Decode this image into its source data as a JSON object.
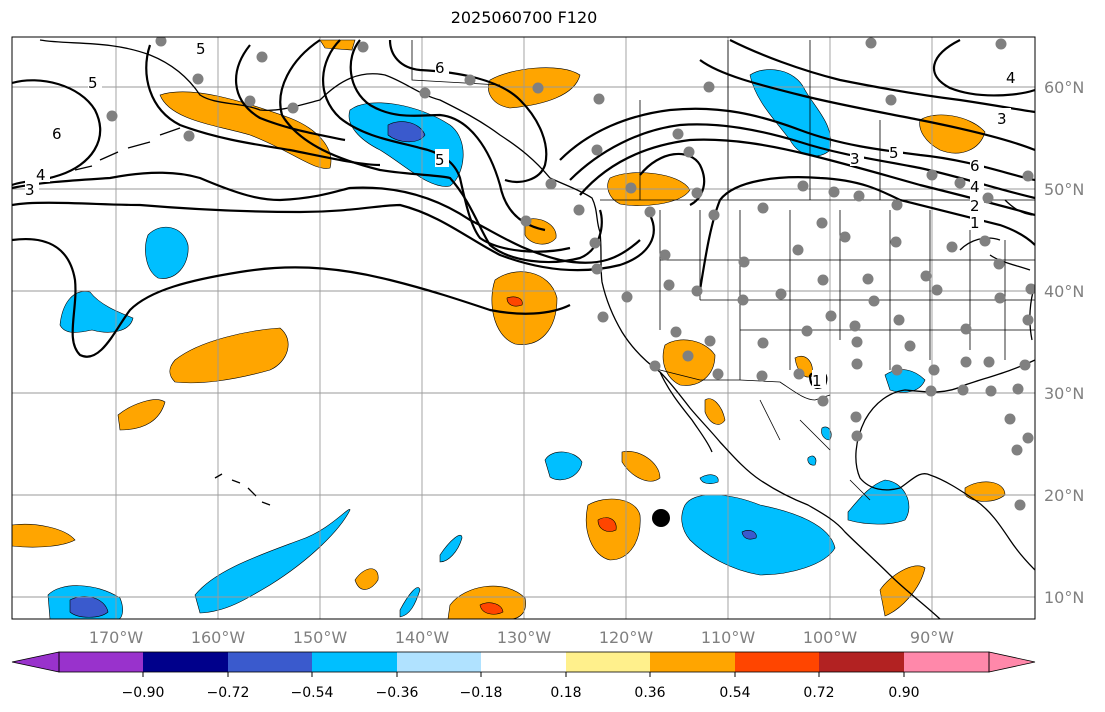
{
  "title": "2025060700 F120",
  "map": {
    "lon_ticks": [
      "170°W",
      "160°W",
      "150°W",
      "140°W",
      "130°W",
      "120°W",
      "110°W",
      "100°W",
      "90°W"
    ],
    "lat_ticks": [
      "60°N",
      "50°N",
      "40°N",
      "30°N",
      "20°N",
      "10°N"
    ],
    "contour_labels": [
      "5",
      "6",
      "4",
      "3",
      "6",
      "5",
      "5",
      "3",
      "5",
      "4",
      "6",
      "4",
      "2",
      "1",
      "3",
      "1"
    ],
    "anomaly_colors": {
      "neg_strong": "#3a5acd",
      "neg_mid": "#00bfff",
      "neg_weak": "#b0e2ff",
      "pos_weak": "#fff08c",
      "pos_mid": "#ffa500",
      "pos_strong": "#ff4500"
    },
    "station_color": "#808080",
    "marker_color": "#000000"
  },
  "colorbar": {
    "tick_labels": [
      "−0.90",
      "−0.72",
      "−0.54",
      "−0.36",
      "−0.18",
      "0.18",
      "0.36",
      "0.54",
      "0.72",
      "0.90"
    ],
    "colors": [
      "#9932cc",
      "#00008b",
      "#3a5acd",
      "#00bfff",
      "#b0e2ff",
      "#ffffff",
      "#fff08c",
      "#ffa500",
      "#ff4500",
      "#b22222",
      "#ff88aa"
    ]
  }
}
